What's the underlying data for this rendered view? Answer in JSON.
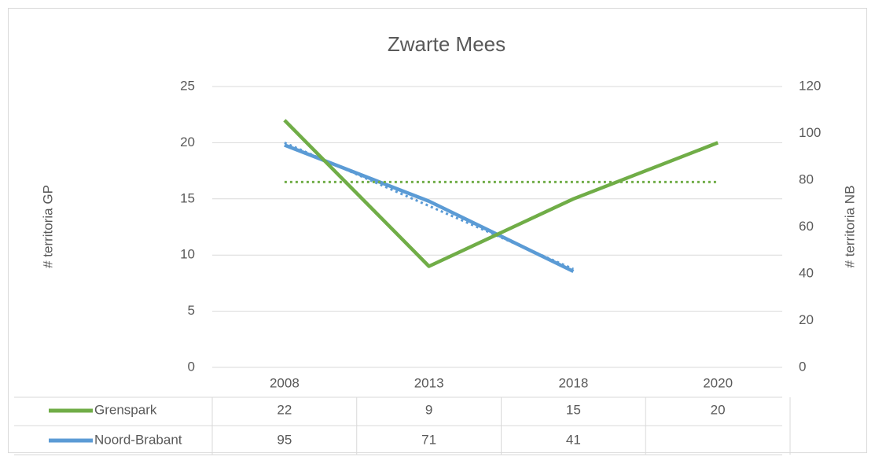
{
  "chart_data": {
    "type": "line",
    "title": "Zwarte Mees",
    "categories": [
      "2008",
      "2013",
      "2018",
      "2020"
    ],
    "series": [
      {
        "name": "Grenspark",
        "color": "#70ad47",
        "values": [
          22,
          9,
          15,
          20
        ],
        "trendline": "linear"
      },
      {
        "name": "Noord-Brabant",
        "color": "#5b9bd5",
        "values": [
          95,
          71,
          41,
          null
        ],
        "axis": "y2",
        "trendline": "linear"
      }
    ],
    "ylabel": "# territoria GP",
    "y2label": "# territoria NB",
    "ylim": [
      0,
      25
    ],
    "yticks": [
      0,
      5,
      10,
      15,
      20,
      25
    ],
    "y2lim": [
      0,
      120
    ],
    "y2ticks": [
      0,
      20,
      40,
      60,
      80,
      100,
      120
    ],
    "grid": true,
    "data_table": true
  }
}
